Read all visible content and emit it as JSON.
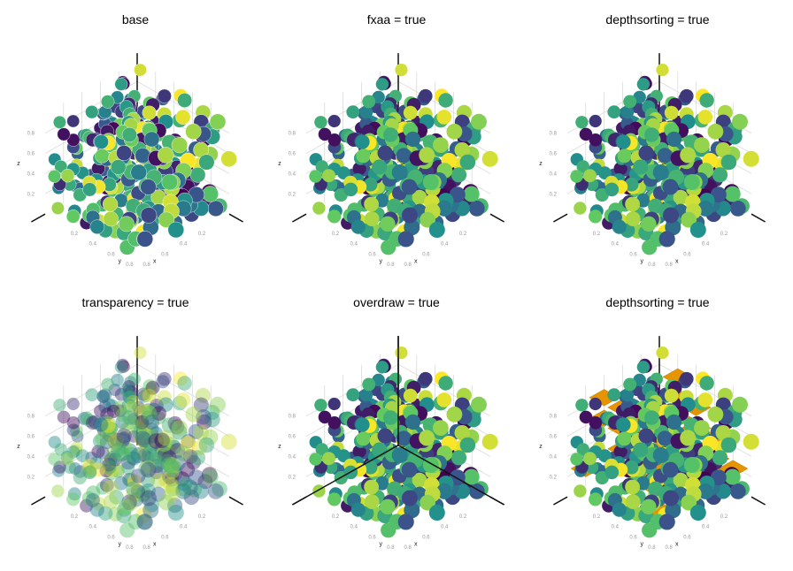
{
  "figure": {
    "panels": [
      {
        "title": "base",
        "mode": "base"
      },
      {
        "title": "fxaa = true",
        "mode": "fxaa"
      },
      {
        "title": "depthsorting = true",
        "mode": "depthsorting"
      },
      {
        "title": "transparency = true",
        "mode": "transparency"
      },
      {
        "title": "overdraw = true",
        "mode": "overdraw"
      },
      {
        "title": "depthsorting = true",
        "mode": "depthsorting_cubes"
      }
    ]
  },
  "chart_data": {
    "type": "scatter",
    "dimensions": 3,
    "xlabel": "x",
    "ylabel": "y",
    "zlabel": "z",
    "xlim": [
      0,
      1
    ],
    "ylim": [
      0,
      1
    ],
    "zlim": [
      0,
      1
    ],
    "xticks": [
      "0.2",
      "0.4",
      "0.6",
      "0.8"
    ],
    "yticks": [
      "0.2",
      "0.4",
      "0.6",
      "0.8"
    ],
    "zticks": [
      "0.2",
      "0.4",
      "0.6",
      "0.8"
    ],
    "grid": true,
    "colormap": [
      "#440154",
      "#3b528b",
      "#21908d",
      "#5dc863",
      "#fde725"
    ],
    "cube_color": "#e69500",
    "n_points": 300
  }
}
